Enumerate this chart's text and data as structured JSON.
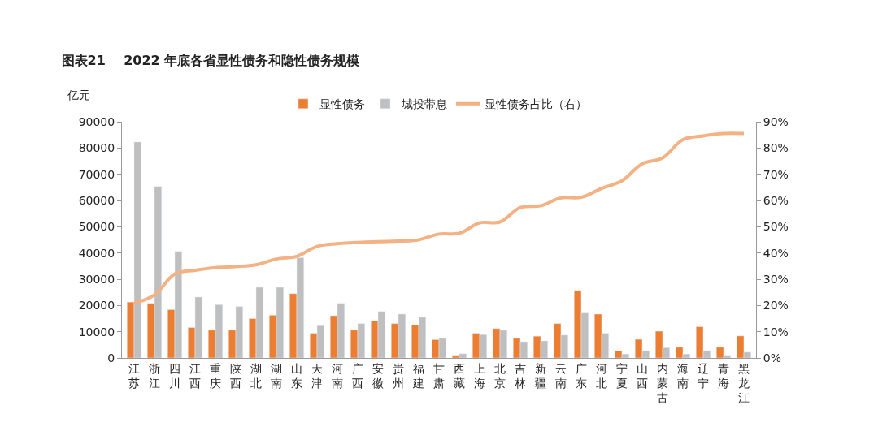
{
  "chart_data": {
    "type": "bar",
    "title": "图表21    2022 年底各省显性债务和隐性债务规模",
    "ylabel": "亿元",
    "categories": [
      "江苏",
      "浙江",
      "四川",
      "江西",
      "重庆",
      "陕西",
      "湖北",
      "湖南",
      "山东",
      "天津",
      "河南",
      "广西",
      "安徽",
      "贵州",
      "福建",
      "甘肃",
      "西藏",
      "上海",
      "北京",
      "吉林",
      "新疆",
      "云南",
      "广东",
      "河北",
      "宁夏",
      "山西",
      "内蒙古",
      "海南",
      "辽宁",
      "青海",
      "黑龙江"
    ],
    "series": [
      {
        "name": "显性债务",
        "color": "#ed7d31",
        "values": [
          21300,
          20800,
          18400,
          11600,
          10600,
          10600,
          15000,
          16300,
          24500,
          9400,
          16100,
          10600,
          14200,
          13100,
          12600,
          7000,
          1000,
          9400,
          11200,
          7500,
          8300,
          13100,
          25700,
          16700,
          2800,
          7100,
          10200,
          4100,
          11900,
          4100,
          8400
        ]
      },
      {
        "name": "城投带息",
        "color": "#bfbfbf",
        "values": [
          82300,
          65300,
          40600,
          23200,
          20300,
          19600,
          26900,
          26900,
          38200,
          12300,
          20800,
          13100,
          17700,
          16700,
          15500,
          7500,
          1600,
          8900,
          10600,
          6200,
          6500,
          8700,
          17100,
          9400,
          1500,
          2800,
          3900,
          1500,
          2800,
          1000,
          2200
        ]
      },
      {
        "name": "显性债务占比（右）",
        "type": "line",
        "axis": "y2",
        "color": "#f4b183",
        "values": [
          20.8,
          24,
          32,
          33.4,
          34.4,
          34.8,
          35.5,
          37.7,
          38.7,
          42.5,
          43.5,
          44,
          44.3,
          44.5,
          45,
          47.2,
          47.5,
          51.5,
          51.8,
          57.3,
          58,
          61,
          61.2,
          64.6,
          67.5,
          74,
          76.2,
          83.2,
          84.6,
          85.5,
          85.5
        ]
      }
    ],
    "ylim": [
      0,
      90000
    ],
    "yticks": [
      0,
      10000,
      20000,
      30000,
      40000,
      50000,
      60000,
      70000,
      80000,
      90000
    ],
    "y2lim": [
      0,
      90
    ],
    "y2ticks": [
      {
        "value": 0,
        "label": "0%"
      },
      {
        "value": 10,
        "label": "10%"
      },
      {
        "value": 20,
        "label": "20%"
      },
      {
        "value": 30,
        "label": "30%"
      },
      {
        "value": 40,
        "label": "40%"
      },
      {
        "value": 50,
        "label": "50%"
      },
      {
        "value": 60,
        "label": "60%"
      },
      {
        "value": 70,
        "label": "70%"
      },
      {
        "value": 80,
        "label": "80%"
      },
      {
        "value": 90,
        "label": "90%"
      }
    ],
    "legend": "top"
  }
}
